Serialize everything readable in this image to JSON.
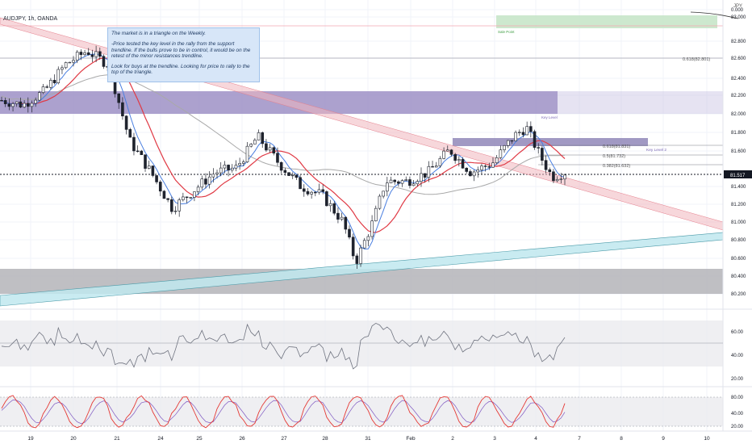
{
  "header": {
    "symbol": "AUDJPY, 1h, OANDA",
    "currency": "JPY"
  },
  "callout": {
    "p1": "The market is in a triangle on the Weekly.",
    "p2": "-Price tested the key level in the rally from the support trendline. If the bulls prove to be in control, it would be on the retest of the minor resistances trendline.",
    "p3": "Look for buys at the trendline. Looking for price to rally to the top of the triangle."
  },
  "annotations": {
    "sale_point": "Sale Point",
    "key_level": "Key Level",
    "key_level_2": "Key Level 2",
    "fib_618_top": "0.618(82.801)",
    "fib_618_mid": "0.618(81.831)",
    "fib_5": "0.5(81.732)",
    "fib_382": "0.382(81.632)"
  },
  "colors": {
    "background": "#ffffff",
    "grid": "#f0f3fa",
    "candle": "#1e222d",
    "ma_red": "#e03a45",
    "ma_blue": "#4a7fe0",
    "ma_grey": "#a9a9a9",
    "resistance_zone": "#9e91c6",
    "support_zone": "#b4b4b8",
    "sale_zone": "#c8e6c9",
    "triangle_top": "#f1b6bd",
    "triangle_bottom": "#bfe8ee",
    "price_tag": "#131722",
    "oscillator": "#707480",
    "stoch_k": "#e53935",
    "stoch_d": "#7e57c2"
  },
  "chart_data": [
    {
      "type": "candlestick",
      "title": "AUDJPY, 1h, OANDA",
      "xlabel": "",
      "ylabel": "",
      "ylim": [
        80.2,
        83.3
      ],
      "y_ticks": [
        "0.000",
        "83.000",
        "82.800",
        "82.600",
        "82.400",
        "82.200",
        "82.000",
        "81.800",
        "81.600",
        "81.400",
        "81.200",
        "81.000",
        "80.800",
        "80.600",
        "80.400",
        "80.200"
      ],
      "x_ticks": [
        "19",
        "20",
        "21",
        "24",
        "25",
        "26",
        "27",
        "28",
        "31",
        "Feb",
        "2",
        "3",
        "4",
        "7",
        "8",
        "9",
        "10"
      ],
      "last_price": "81.517",
      "approx_close_path": [
        [
          0,
          82.35
        ],
        [
          0.5,
          82.3
        ],
        [
          1,
          82.45
        ],
        [
          1.5,
          82.75
        ],
        [
          2,
          82.9
        ],
        [
          2.5,
          82.75
        ],
        [
          3,
          81.9
        ],
        [
          3.5,
          81.55
        ],
        [
          4,
          81.15
        ],
        [
          4.5,
          81.35
        ],
        [
          5,
          81.55
        ],
        [
          5.5,
          81.6
        ],
        [
          6,
          81.95
        ],
        [
          6.5,
          81.65
        ],
        [
          7,
          81.4
        ],
        [
          7.5,
          81.3
        ],
        [
          8,
          81.0
        ],
        [
          8.3,
          80.55
        ],
        [
          8.7,
          81.0
        ],
        [
          9,
          81.45
        ],
        [
          9.5,
          81.45
        ],
        [
          10,
          81.55
        ],
        [
          10.5,
          81.8
        ],
        [
          11,
          81.55
        ],
        [
          11.5,
          81.65
        ],
        [
          12,
          81.95
        ],
        [
          12.3,
          82.05
        ],
        [
          12.6,
          81.75
        ],
        [
          12.9,
          81.5
        ],
        [
          13.2,
          81.55
        ]
      ],
      "moving_averages": [
        "red",
        "blue",
        "grey"
      ],
      "zones": [
        {
          "name": "resistance",
          "from": 82.2,
          "to": 82.4
        },
        {
          "name": "support",
          "from": 80.2,
          "to": 80.4
        },
        {
          "name": "key level 2",
          "from": 81.84,
          "to": 81.9
        },
        {
          "name": "sale point",
          "from": 82.9,
          "to": 83.0
        }
      ],
      "horizontal_levels": [
        82.801,
        81.831,
        81.732,
        81.632,
        81.517
      ]
    },
    {
      "type": "line",
      "name": "oscillator",
      "ylim": [
        20,
        70
      ],
      "y_ticks": [
        "60.00",
        "40.00",
        "20.00"
      ],
      "reference_band": [
        30,
        70
      ],
      "level_line": 50
    },
    {
      "type": "line",
      "name": "stochastic",
      "ylim": [
        20,
        90
      ],
      "y_ticks": [
        "80.00",
        "40.00",
        "20.00"
      ],
      "band": [
        20,
        80
      ]
    }
  ]
}
